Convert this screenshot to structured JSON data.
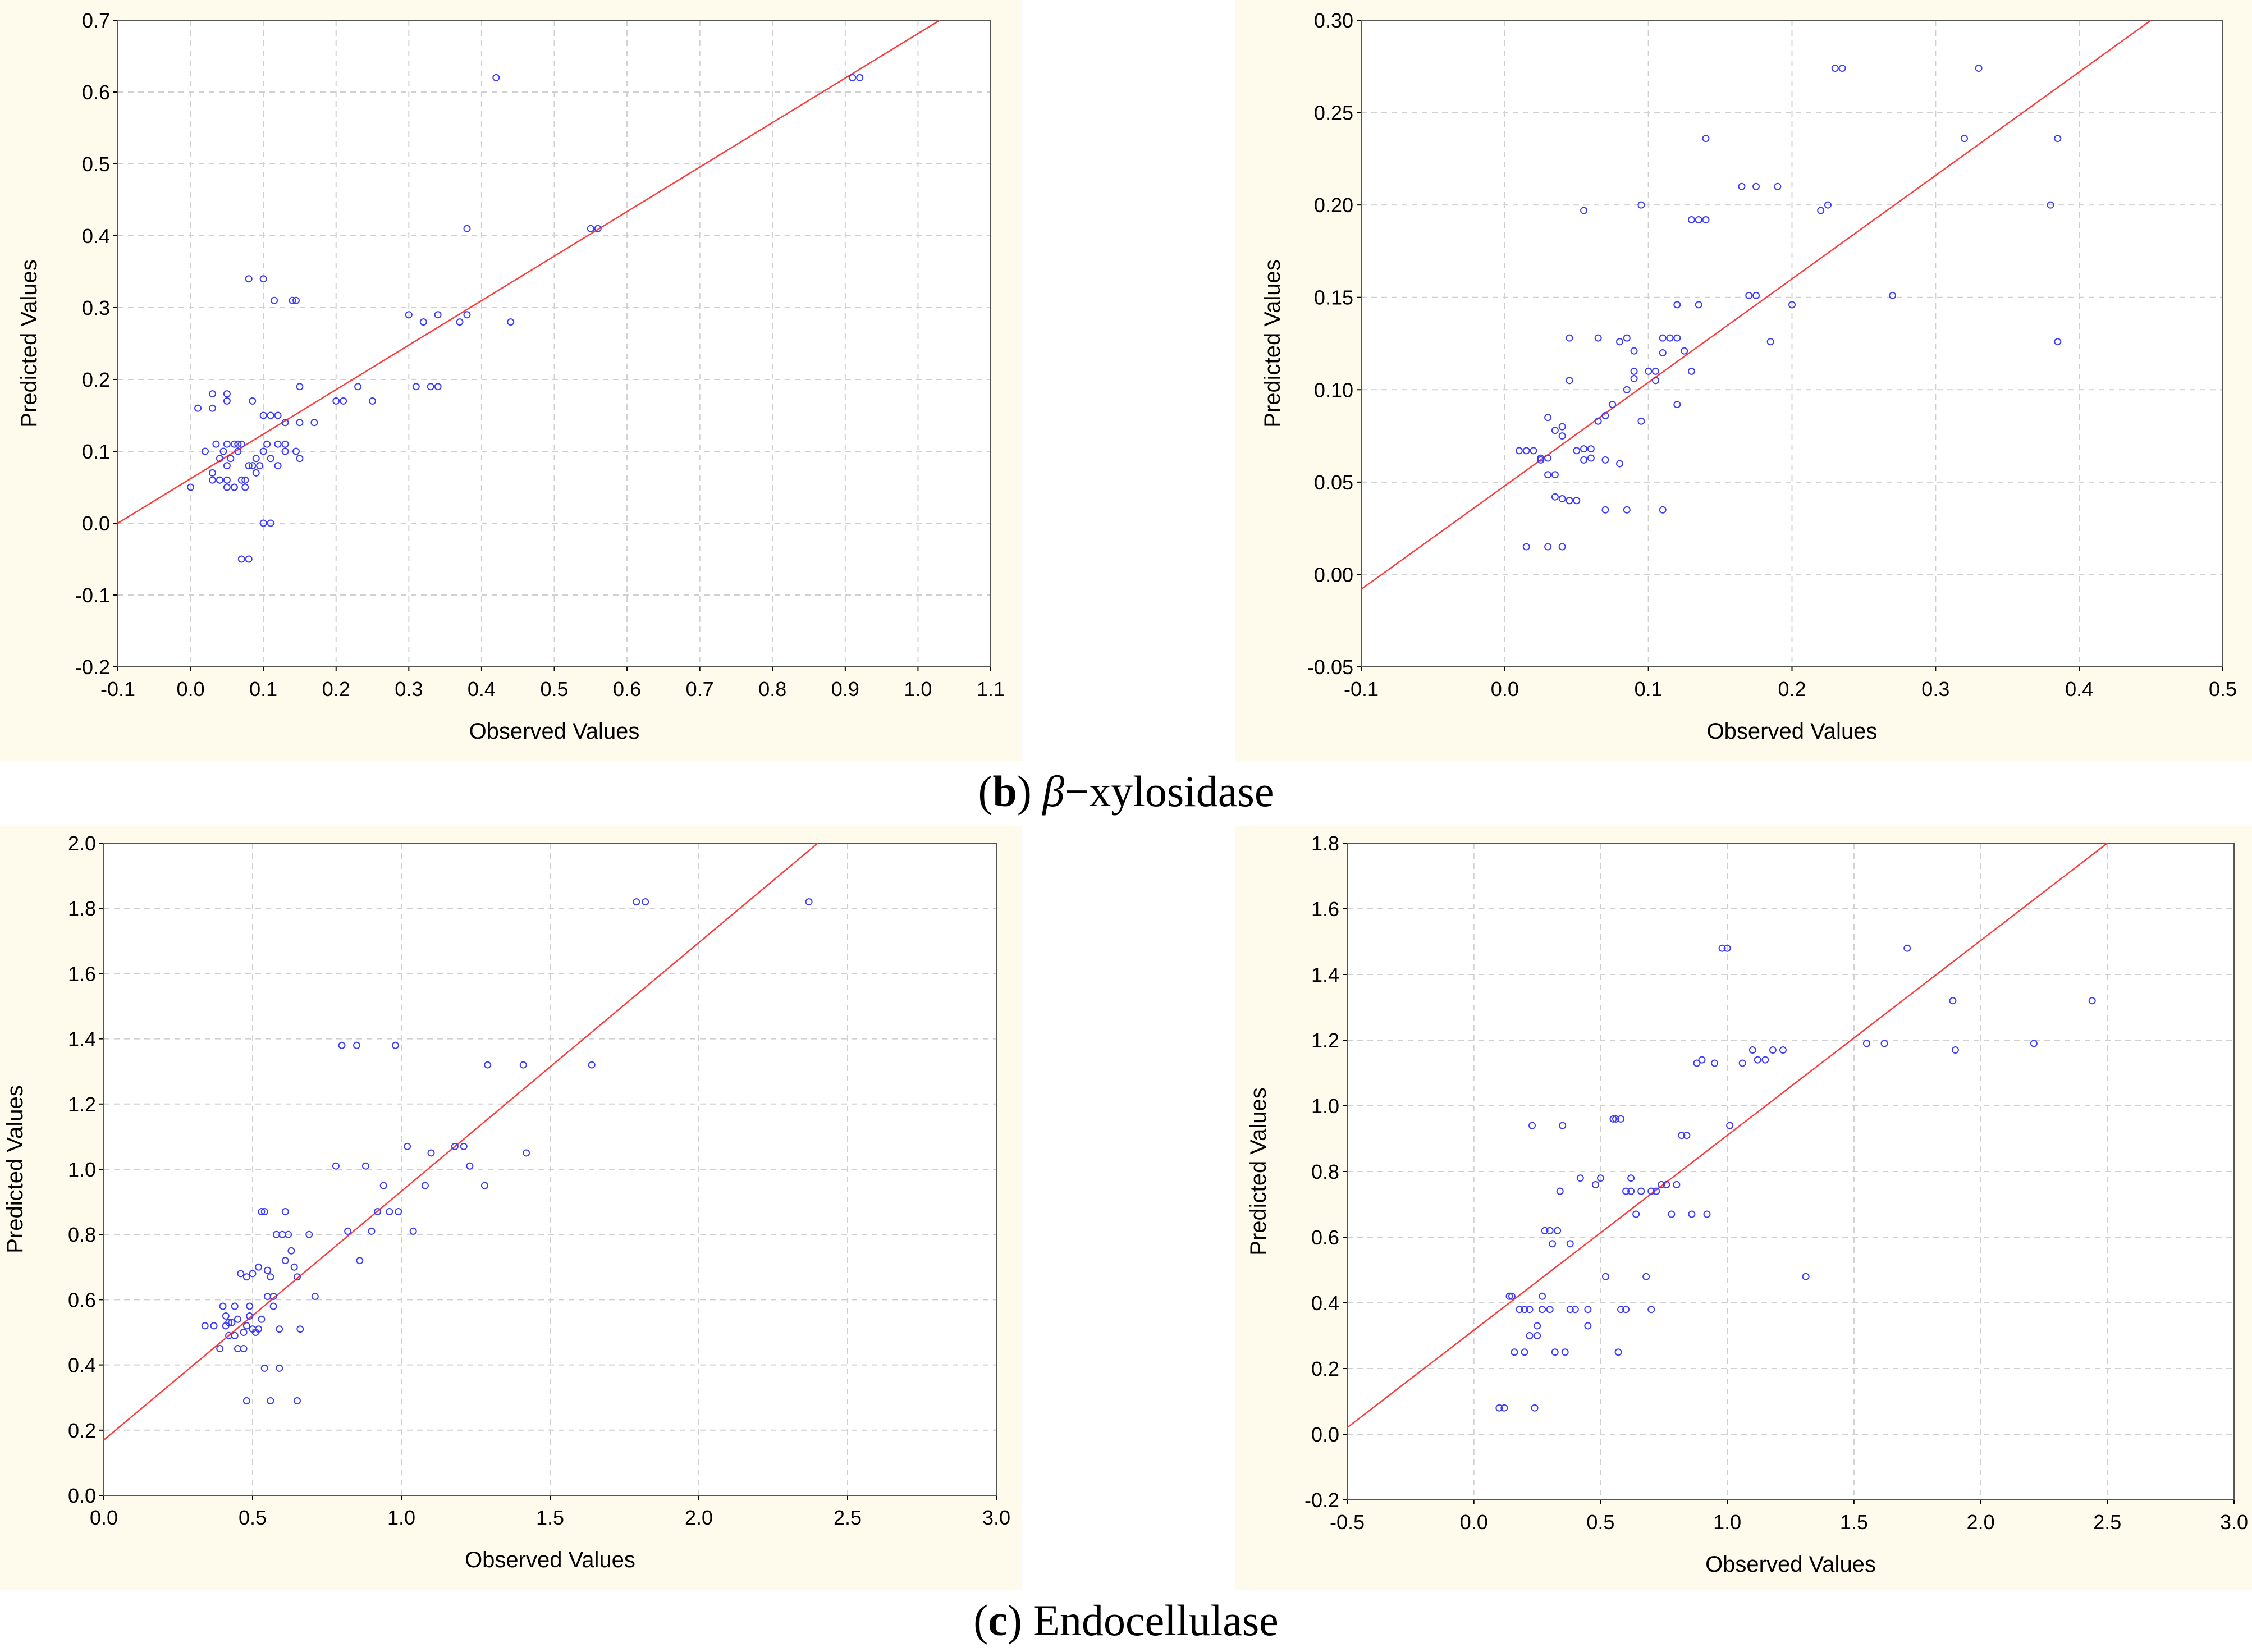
{
  "captions": {
    "b": {
      "letter": "b",
      "name": "β",
      "rest": "−xylosidase"
    },
    "c": {
      "letter": "c",
      "name": "",
      "rest": "Endocellulase"
    }
  },
  "chart_data": [
    {
      "type": "scatter",
      "id": "chart-tl",
      "xlabel": "Observed Values",
      "ylabel": "Predicted Values",
      "xlim": [
        -0.1,
        1.1
      ],
      "ylim": [
        -0.2,
        0.7
      ],
      "xticks": [
        "-0.1",
        "0.0",
        "0.1",
        "0.2",
        "0.3",
        "0.4",
        "0.5",
        "0.6",
        "0.7",
        "0.8",
        "0.9",
        "1.0",
        "1.1"
      ],
      "yticks": [
        "-0.2",
        "-0.1",
        "0.0",
        "0.1",
        "0.2",
        "0.3",
        "0.4",
        "0.5",
        "0.6",
        "0.7"
      ],
      "grid": true,
      "fit_line": {
        "x": [
          -0.1,
          1.03
        ],
        "y": [
          0.0,
          0.7
        ]
      },
      "series": [
        {
          "name": "points",
          "x": [
            0.0,
            0.01,
            0.02,
            0.03,
            0.03,
            0.035,
            0.04,
            0.04,
            0.045,
            0.05,
            0.05,
            0.05,
            0.055,
            0.06,
            0.06,
            0.065,
            0.07,
            0.075,
            0.08,
            0.085,
            0.09,
            0.095,
            0.1,
            0.1,
            0.11,
            0.11,
            0.12,
            0.12,
            0.13,
            0.13,
            0.14,
            0.15,
            0.15,
            0.17,
            0.2,
            0.21,
            0.23,
            0.25,
            0.3,
            0.31,
            0.32,
            0.34,
            0.37,
            0.38,
            0.38,
            0.42,
            0.44,
            0.55,
            0.56,
            0.91,
            0.92,
            0.07,
            0.08,
            0.1,
            0.11,
            0.08,
            0.1,
            0.115,
            0.145,
            0.15,
            0.03,
            0.05,
            0.05,
            0.075,
            0.085,
            0.04,
            0.06,
            0.07,
            0.09,
            0.12,
            0.145,
            0.03,
            0.05,
            0.065,
            0.105,
            0.13,
            0.33,
            0.34
          ],
          "y": [
            0.05,
            0.16,
            0.1,
            0.18,
            0.16,
            0.11,
            0.09,
            0.06,
            0.1,
            0.08,
            0.17,
            0.18,
            0.09,
            0.05,
            0.11,
            0.1,
            0.11,
            0.05,
            0.08,
            0.17,
            0.07,
            0.08,
            0.1,
            0.15,
            0.09,
            0.15,
            0.11,
            0.15,
            0.14,
            0.1,
            0.31,
            0.14,
            0.19,
            0.14,
            0.17,
            0.17,
            0.19,
            0.17,
            0.29,
            0.19,
            0.28,
            0.29,
            0.28,
            0.29,
            0.41,
            0.62,
            0.28,
            0.41,
            0.41,
            0.62,
            0.62,
            -0.05,
            -0.05,
            0.0,
            0.0,
            0.34,
            0.34,
            0.31,
            0.31,
            0.09,
            0.07,
            0.06,
            0.05,
            0.06,
            0.08,
            0.06,
            0.05,
            0.06,
            0.09,
            0.08,
            0.1,
            0.06,
            0.11,
            0.11,
            0.11,
            0.11,
            0.19,
            0.19
          ]
        }
      ]
    },
    {
      "type": "scatter",
      "id": "chart-tr",
      "xlabel": "Observed Values",
      "ylabel": "Predicted Values",
      "xlim": [
        -0.1,
        0.5
      ],
      "ylim": [
        -0.05,
        0.3
      ],
      "xticks": [
        "-0.1",
        "0.0",
        "0.1",
        "0.2",
        "0.3",
        "0.4",
        "0.5"
      ],
      "yticks": [
        "-0.05",
        "0.00",
        "0.05",
        "0.10",
        "0.15",
        "0.20",
        "0.25",
        "0.30"
      ],
      "grid": true,
      "fit_line": {
        "x": [
          -0.1,
          0.45
        ],
        "y": [
          -0.008,
          0.3
        ]
      },
      "series": [
        {
          "name": "points",
          "x": [
            0.01,
            0.015,
            0.02,
            0.025,
            0.03,
            0.03,
            0.035,
            0.04,
            0.04,
            0.045,
            0.045,
            0.05,
            0.05,
            0.055,
            0.06,
            0.065,
            0.065,
            0.07,
            0.075,
            0.08,
            0.085,
            0.085,
            0.09,
            0.09,
            0.095,
            0.1,
            0.105,
            0.11,
            0.11,
            0.115,
            0.12,
            0.12,
            0.125,
            0.13,
            0.135,
            0.14,
            0.165,
            0.17,
            0.175,
            0.185,
            0.19,
            0.2,
            0.22,
            0.23,
            0.235,
            0.27,
            0.32,
            0.33,
            0.38,
            0.385,
            0.385,
            0.055,
            0.095,
            0.135,
            0.03,
            0.04,
            0.045,
            0.07,
            0.085,
            0.11,
            0.015,
            0.035,
            0.025,
            0.03,
            0.045,
            0.06,
            0.08,
            0.105,
            0.12,
            0.035,
            0.04,
            0.055,
            0.07,
            0.09,
            0.13,
            0.14,
            0.175,
            0.225
          ],
          "y": [
            0.067,
            0.067,
            0.067,
            0.063,
            0.054,
            0.085,
            0.078,
            0.041,
            0.08,
            0.105,
            0.128,
            0.067,
            0.04,
            0.068,
            0.068,
            0.128,
            0.083,
            0.086,
            0.092,
            0.126,
            0.1,
            0.128,
            0.121,
            0.11,
            0.083,
            0.11,
            0.11,
            0.128,
            0.12,
            0.128,
            0.128,
            0.146,
            0.121,
            0.11,
            0.146,
            0.236,
            0.21,
            0.151,
            0.151,
            0.126,
            0.21,
            0.146,
            0.197,
            0.274,
            0.274,
            0.151,
            0.236,
            0.274,
            0.2,
            0.236,
            0.126,
            0.197,
            0.2,
            0.192,
            0.015,
            0.015,
            0.04,
            0.035,
            0.035,
            0.035,
            0.015,
            0.042,
            0.062,
            0.063,
            0.04,
            0.063,
            0.06,
            0.105,
            0.092,
            0.054,
            0.075,
            0.062,
            0.062,
            0.106,
            0.192,
            0.192,
            0.21,
            0.2
          ]
        }
      ]
    },
    {
      "type": "scatter",
      "id": "chart-bl",
      "xlabel": "Observed Values",
      "ylabel": "Predicted Values",
      "xlim": [
        0.0,
        3.0
      ],
      "ylim": [
        0.0,
        2.0
      ],
      "xticks": [
        "0.0",
        "0.5",
        "1.0",
        "1.5",
        "2.0",
        "2.5",
        "3.0"
      ],
      "yticks": [
        "0.0",
        "0.2",
        "0.4",
        "0.6",
        "0.8",
        "1.0",
        "1.2",
        "1.4",
        "1.6",
        "1.8",
        "2.0"
      ],
      "grid": true,
      "fit_line": {
        "x": [
          0.0,
          2.4
        ],
        "y": [
          0.17,
          2.0
        ]
      },
      "series": [
        {
          "name": "points",
          "x": [
            0.34,
            0.37,
            0.39,
            0.4,
            0.41,
            0.42,
            0.43,
            0.44,
            0.45,
            0.46,
            0.47,
            0.48,
            0.49,
            0.5,
            0.51,
            0.52,
            0.53,
            0.54,
            0.55,
            0.56,
            0.57,
            0.58,
            0.59,
            0.6,
            0.61,
            0.62,
            0.64,
            0.65,
            0.66,
            0.69,
            0.71,
            0.78,
            0.8,
            0.82,
            0.85,
            0.86,
            0.88,
            0.9,
            0.92,
            0.94,
            0.96,
            0.98,
            0.99,
            1.02,
            1.04,
            1.08,
            1.1,
            1.18,
            1.21,
            1.23,
            1.28,
            1.29,
            1.41,
            1.42,
            1.64,
            1.79,
            1.82,
            2.37,
            0.48,
            0.56,
            0.65,
            0.54,
            0.59,
            0.45,
            0.48,
            0.44,
            0.42,
            0.47,
            0.5,
            0.53,
            0.55,
            0.57,
            0.61,
            0.63,
            0.52,
            0.49,
            0.41
          ],
          "y": [
            0.52,
            0.52,
            0.45,
            0.58,
            0.52,
            0.49,
            0.53,
            0.49,
            0.54,
            0.68,
            0.5,
            0.67,
            0.58,
            0.68,
            0.5,
            0.7,
            0.87,
            0.87,
            0.61,
            0.67,
            0.61,
            0.8,
            0.51,
            0.8,
            0.87,
            0.8,
            0.7,
            0.67,
            0.51,
            0.8,
            0.61,
            1.01,
            1.38,
            0.81,
            1.38,
            0.72,
            1.01,
            0.81,
            0.87,
            0.95,
            0.87,
            1.38,
            0.87,
            1.07,
            0.81,
            0.95,
            1.05,
            1.07,
            1.07,
            1.01,
            0.95,
            1.32,
            1.32,
            1.05,
            1.32,
            1.82,
            1.82,
            1.82,
            0.29,
            0.29,
            0.29,
            0.39,
            0.39,
            0.45,
            0.52,
            0.58,
            0.53,
            0.45,
            0.51,
            0.54,
            0.69,
            0.58,
            0.72,
            0.75,
            0.51,
            0.55,
            0.55
          ]
        }
      ]
    },
    {
      "type": "scatter",
      "id": "chart-br",
      "xlabel": "Observed Values",
      "ylabel": "Predicted Values",
      "xlim": [
        -0.5,
        3.0
      ],
      "ylim": [
        -0.2,
        1.8
      ],
      "xticks": [
        "-0.5",
        "0.0",
        "0.5",
        "1.0",
        "1.5",
        "2.0",
        "2.5",
        "3.0"
      ],
      "yticks": [
        "-0.2",
        "0.0",
        "0.2",
        "0.4",
        "0.6",
        "0.8",
        "1.0",
        "1.2",
        "1.4",
        "1.6",
        "1.8"
      ],
      "grid": true,
      "fit_line": {
        "x": [
          -0.5,
          2.5
        ],
        "y": [
          0.02,
          1.8
        ]
      },
      "series": [
        {
          "name": "points",
          "x": [
            0.1,
            0.12,
            0.14,
            0.16,
            0.18,
            0.2,
            0.22,
            0.24,
            0.25,
            0.27,
            0.28,
            0.3,
            0.31,
            0.33,
            0.34,
            0.36,
            0.38,
            0.4,
            0.42,
            0.45,
            0.48,
            0.5,
            0.52,
            0.55,
            0.57,
            0.58,
            0.6,
            0.62,
            0.64,
            0.66,
            0.68,
            0.7,
            0.72,
            0.74,
            0.76,
            0.78,
            0.8,
            0.82,
            0.84,
            0.86,
            0.88,
            0.9,
            0.92,
            0.95,
            0.98,
            1.0,
            1.01,
            1.06,
            1.1,
            1.12,
            1.15,
            1.18,
            1.22,
            1.31,
            1.55,
            1.62,
            1.71,
            1.89,
            1.9,
            2.21,
            2.44,
            0.15,
            0.2,
            0.23,
            0.3,
            0.35,
            0.45,
            0.58,
            0.62,
            0.7,
            0.27,
            0.32,
            0.38,
            0.25,
            0.22,
            0.56,
            0.6
          ],
          "y": [
            0.08,
            0.08,
            0.42,
            0.25,
            0.38,
            0.25,
            0.3,
            0.08,
            0.3,
            0.38,
            0.62,
            0.38,
            0.58,
            0.62,
            0.74,
            0.25,
            0.58,
            0.38,
            0.78,
            0.33,
            0.76,
            0.78,
            0.48,
            0.96,
            0.25,
            0.96,
            0.74,
            0.78,
            0.67,
            0.74,
            0.48,
            0.38,
            0.74,
            0.76,
            0.76,
            0.67,
            0.76,
            0.91,
            0.91,
            0.67,
            1.13,
            1.14,
            0.67,
            1.13,
            1.48,
            1.48,
            0.94,
            1.13,
            1.17,
            1.14,
            1.14,
            1.17,
            1.17,
            0.48,
            1.19,
            1.19,
            1.48,
            1.32,
            1.17,
            1.19,
            1.32,
            0.42,
            0.38,
            0.94,
            0.62,
            0.94,
            0.38,
            0.38,
            0.74,
            0.74,
            0.42,
            0.25,
            0.38,
            0.33,
            0.38,
            0.96,
            0.38
          ]
        }
      ]
    }
  ]
}
